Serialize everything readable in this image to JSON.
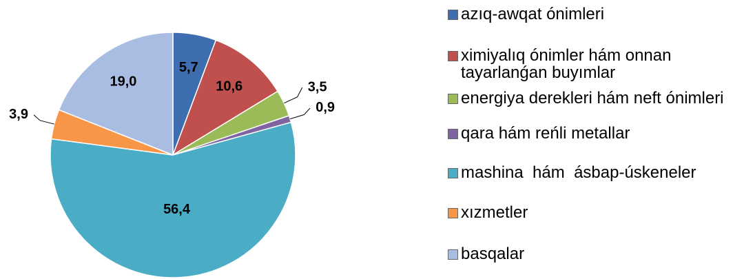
{
  "chart_data": {
    "type": "pie",
    "categories": [
      "azıq-awqat ónimleri",
      "ximiyalıq ónimler hám onnan tayarlanǵan buyımlar",
      "energiya derekleri hám neft ónimleri",
      "qara hám reńli metallar",
      "mashina  hám  ásbap-úskeneler",
      "xızmetler",
      "basqalar"
    ],
    "values": [
      5.7,
      10.6,
      3.5,
      0.9,
      56.4,
      3.9,
      19.0
    ],
    "value_labels": [
      "5,7",
      "10,6",
      "3,5",
      "0,9",
      "56,4",
      "3,9",
      "19,0"
    ],
    "colors": [
      "#3e6db0",
      "#c0504d",
      "#9bbb59",
      "#8064a2",
      "#4bacc6",
      "#f79646",
      "#a9bde3"
    ],
    "legend": "right"
  }
}
